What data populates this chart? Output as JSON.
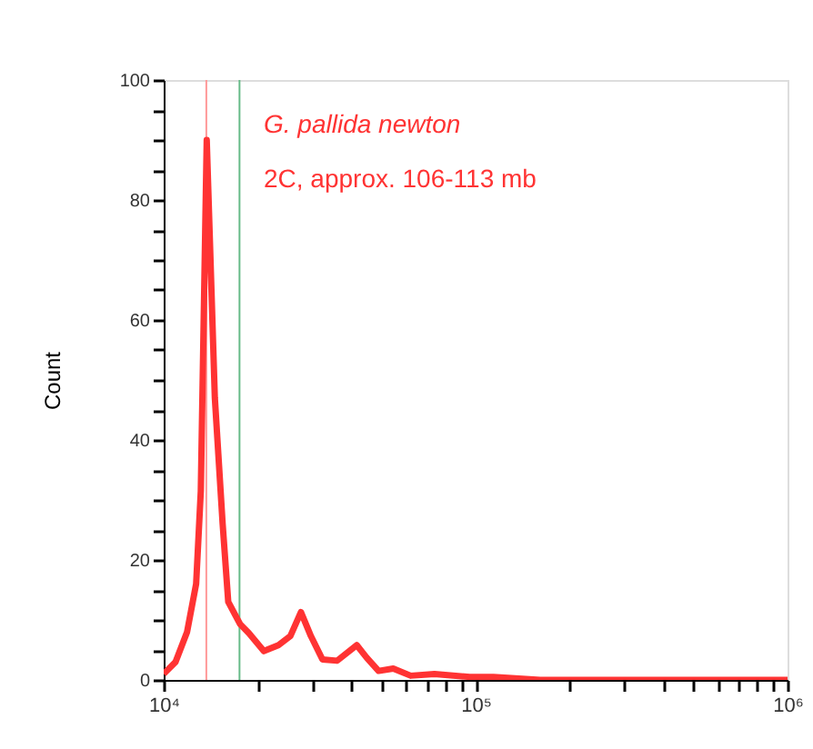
{
  "chart_data": {
    "type": "line",
    "ylabel": "Count",
    "annotations": [
      "G. pallida newton",
      "2C, approx. 106-113 mb"
    ],
    "x": [
      10000,
      10914,
      11885,
      12706,
      13152,
      13740,
      14588,
      15453,
      16106,
      17579,
      18750,
      20941,
      23335,
      25468,
      27542,
      29648,
      32285,
      35975,
      41591,
      44771,
      48865,
      54450,
      61944,
      73790,
      95719,
      114025,
      141254,
      161064,
      316228,
      1000000
    ],
    "series": [
      {
        "color": "#ff3333",
        "values": [
          1,
          3,
          8,
          16,
          31.5,
          90,
          47,
          26,
          13,
          9.3,
          7.8,
          4.8,
          5.8,
          7.3,
          11.3,
          7.3,
          3.4,
          3.2,
          5.8,
          3.7,
          1.5,
          1.9,
          0.7,
          1,
          0.5,
          0.5,
          0.2,
          0,
          0,
          0
        ]
      }
    ],
    "log": "x",
    "xlim": [
      10000,
      1000000
    ],
    "xticks": [
      {
        "value": 10000,
        "label": "10⁴"
      },
      {
        "value": 20000,
        "label": null
      },
      {
        "value": 30000,
        "label": null
      },
      {
        "value": 40000,
        "label": null
      },
      {
        "value": 50000,
        "label": null
      },
      {
        "value": 60000,
        "label": null
      },
      {
        "value": 70000,
        "label": null
      },
      {
        "value": 80000,
        "label": null
      },
      {
        "value": 90000,
        "label": null
      },
      {
        "value": 100000,
        "label": "10⁵"
      },
      {
        "value": 200000,
        "label": null
      },
      {
        "value": 300000,
        "label": null
      },
      {
        "value": 400000,
        "label": null
      },
      {
        "value": 500000,
        "label": null
      },
      {
        "value": 600000,
        "label": null
      },
      {
        "value": 700000,
        "label": null
      },
      {
        "value": 800000,
        "label": null
      },
      {
        "value": 900000,
        "label": null
      },
      {
        "value": 1000000,
        "label": "10⁶"
      }
    ],
    "ylim": [
      0,
      100
    ],
    "yticks": [
      0,
      {
        "value": 5,
        "label": null
      },
      {
        "value": 10,
        "label": null
      },
      {
        "value": 15,
        "label": null
      },
      20,
      {
        "value": 25,
        "label": null
      },
      {
        "value": 30,
        "label": null
      },
      {
        "value": 35,
        "label": null
      },
      40,
      {
        "value": 45,
        "label": null
      },
      {
        "value": 50,
        "label": null
      },
      {
        "value": 55,
        "label": null
      },
      60,
      {
        "value": 65,
        "label": null
      },
      {
        "value": 70,
        "label": null
      },
      {
        "value": 75,
        "label": null
      },
      80,
      {
        "value": 85,
        "label": null
      },
      {
        "value": 90,
        "label": null
      },
      {
        "value": 95,
        "label": null
      },
      100
    ],
    "ref_lines": [
      {
        "axis": "x",
        "value": 13700,
        "color": "#ff9999"
      },
      {
        "axis": "x",
        "value": 17500,
        "color": "#66bb88"
      }
    ],
    "grid": false,
    "marker": "none",
    "line_style": "solid"
  }
}
